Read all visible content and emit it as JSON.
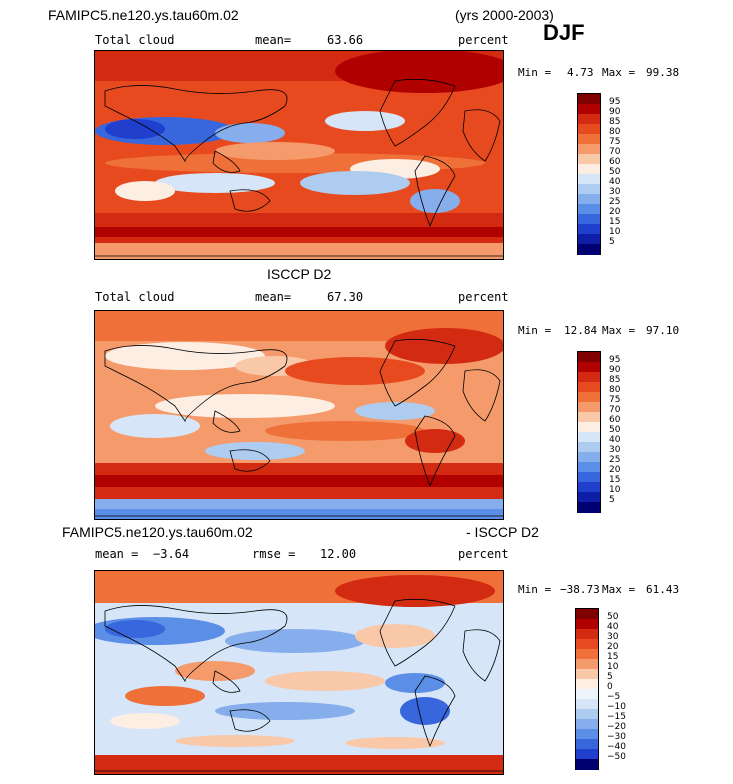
{
  "header": {
    "model_title": "FAMIPC5.ne120.ys.tau60m.02",
    "years": "(yrs 2000-2003)",
    "season": "DJF"
  },
  "panels": [
    {
      "title": "",
      "variable": "Total cloud",
      "stat1_label": "mean=",
      "stat1_value": "63.66",
      "stat2_label": "",
      "stat2_value": "",
      "units": "percent",
      "min_label": "Min =",
      "min_value": "4.73",
      "max_label": "Max =",
      "max_value": "99.38",
      "colorbar_labels": [
        "95",
        "90",
        "85",
        "80",
        "75",
        "70",
        "60",
        "50",
        "40",
        "30",
        "25",
        "20",
        "15",
        "10",
        "5"
      ]
    },
    {
      "title": "ISCCP D2",
      "variable": "Total cloud",
      "stat1_label": "mean=",
      "stat1_value": "67.30",
      "stat2_label": "",
      "stat2_value": "",
      "units": "percent",
      "min_label": "Min =",
      "min_value": "12.84",
      "max_label": "Max =",
      "max_value": "97.10",
      "colorbar_labels": [
        "95",
        "90",
        "85",
        "80",
        "75",
        "70",
        "60",
        "50",
        "40",
        "30",
        "25",
        "20",
        "15",
        "10",
        "5"
      ]
    },
    {
      "title": "FAMIPC5.ne120.ys.tau60m.02",
      "title_right": "- ISCCP D2",
      "variable": "",
      "stat1_label": "mean =",
      "stat1_value": "−3.64",
      "stat2_label": "rmse =",
      "stat2_value": "12.00",
      "units": "percent",
      "min_label": "Min =",
      "min_value": "−38.73",
      "max_label": "Max =",
      "max_value": "61.43",
      "colorbar_labels": [
        "50",
        "40",
        "30",
        "20",
        "15",
        "10",
        "5",
        "0",
        "−5",
        "−10",
        "−15",
        "−20",
        "−30",
        "−40",
        "−50"
      ]
    }
  ],
  "colors": {
    "cloud_scale": [
      "#800000",
      "#b00000",
      "#d32a12",
      "#e84a1f",
      "#f0703a",
      "#f59a6a",
      "#f9c8a8",
      "#fdeee4",
      "#d6e6f8",
      "#aecbf0",
      "#86adec",
      "#5b8ee6",
      "#3766dd",
      "#1f3fcc",
      "#0f1ea6",
      "#000070"
    ],
    "diff_scale": [
      "#800000",
      "#b00000",
      "#d32a12",
      "#e84a1f",
      "#f0703a",
      "#f59a6a",
      "#f9c8a8",
      "#fdeee4",
      "#eef4fc",
      "#d6e6f8",
      "#aecbf0",
      "#86adec",
      "#5b8ee6",
      "#3766dd",
      "#1f3fcc",
      "#000070"
    ]
  }
}
